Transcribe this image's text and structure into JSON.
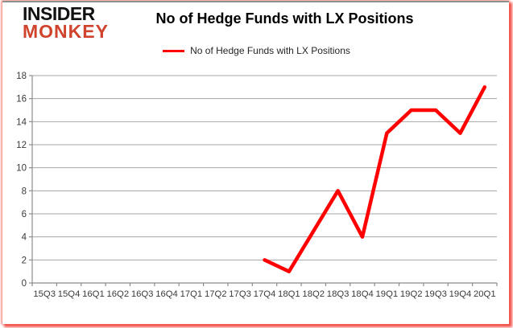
{
  "logo": {
    "line1": "INSIDER",
    "line2": "MONKEY",
    "line2_color": "#d0432d"
  },
  "title": "No of Hedge Funds with LX Positions",
  "legend": {
    "label": "No of Hedge Funds with LX Positions",
    "line_color": "#ff0000"
  },
  "chart_data": {
    "type": "line",
    "title": "No of Hedge Funds with LX Positions",
    "categories": [
      "15Q3",
      "15Q4",
      "16Q1",
      "16Q2",
      "16Q3",
      "16Q4",
      "17Q1",
      "17Q2",
      "17Q3",
      "17Q4",
      "18Q1",
      "18Q2",
      "18Q3",
      "18Q4",
      "19Q1",
      "19Q2",
      "19Q3",
      "19Q4",
      "20Q1"
    ],
    "series": [
      {
        "name": "No of Hedge Funds with LX Positions",
        "color": "#ff0000",
        "values": [
          null,
          null,
          null,
          null,
          null,
          null,
          null,
          null,
          null,
          2,
          1,
          null,
          8,
          4,
          13,
          15,
          15,
          13,
          17
        ]
      }
    ],
    "xlabel": "",
    "ylabel": "",
    "ylim": [
      0,
      18
    ],
    "ytick_step": 2,
    "grid": "horizontal",
    "gridline_color": "#a6a6a6",
    "axis_color": "#8c8c8c",
    "tick_label_color": "#3a3a3a",
    "legend_position": "top-center",
    "gap_policy": "connect"
  }
}
